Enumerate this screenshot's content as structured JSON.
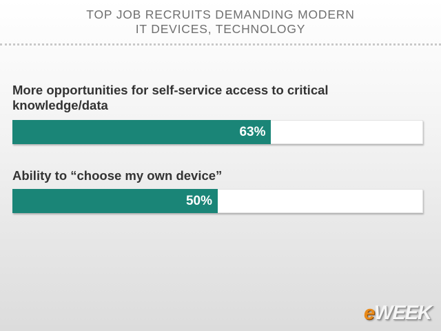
{
  "chart_data": {
    "type": "bar",
    "orientation": "horizontal",
    "title": "TOP JOB RECRUITS DEMANDING MODERN IT DEVICES, TECHNOLOGY",
    "title_lines": [
      "TOP JOB RECRUITS DEMANDING MODERN",
      "IT DEVICES, TECHNOLOGY"
    ],
    "categories": [
      "More opportunities for self-service access to critical knowledge/data",
      "Ability to “choose my own device”"
    ],
    "category_lines": [
      [
        "More opportunities for self-service access to critical",
        "knowledge/data"
      ],
      [
        "Ability to “choose my own device”"
      ]
    ],
    "values": [
      63,
      50
    ],
    "value_labels": [
      "63%",
      "50%"
    ],
    "unit": "%",
    "xlim": [
      0,
      100
    ],
    "grid": false,
    "legend": "none",
    "bar_color": "#1a8577",
    "track_color": "#ffffff"
  },
  "brand": {
    "logo_prefix": "e",
    "logo_rest": "WEEK"
  }
}
